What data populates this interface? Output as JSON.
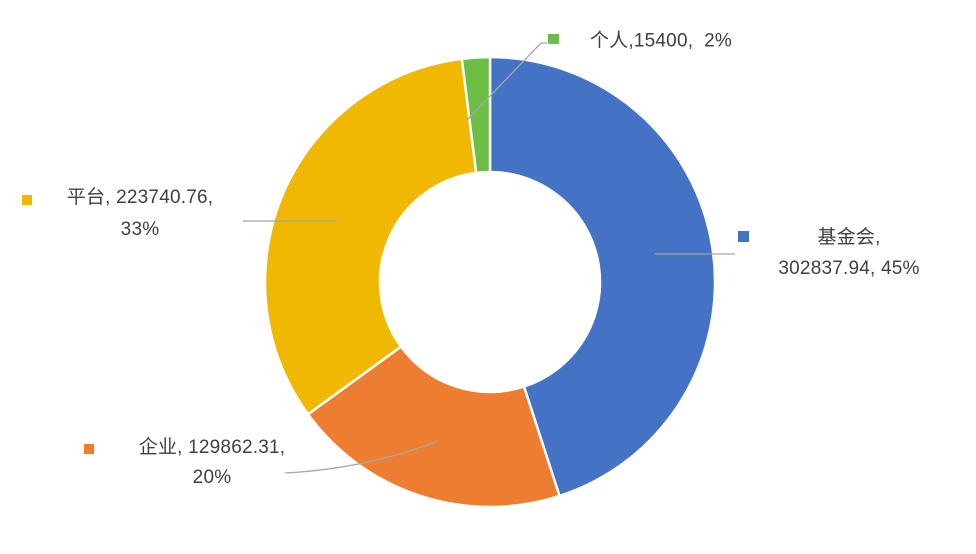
{
  "chart_data": {
    "type": "pie",
    "subtype": "donut",
    "title": "",
    "categories": [
      "基金会",
      "企业",
      "平台",
      "个人"
    ],
    "values": [
      302837.94,
      129862.31,
      223740.76,
      15400
    ],
    "percents": [
      45,
      20,
      33,
      2
    ],
    "colors": [
      "#4472C4",
      "#ED7D31",
      "#F0B800",
      "#6CBE44"
    ],
    "start_angle_deg": 0,
    "direction": "clockwise",
    "donut_hole_ratio": 0.49,
    "legend_position": "none",
    "data_labels": "outside-with-leader-lines"
  },
  "callouts": [
    {
      "category": "基金会",
      "line1": "基金会,",
      "line2": "302837.94, 45%"
    },
    {
      "category": "企业",
      "line1": "企业, 129862.31,",
      "line2": "20%"
    },
    {
      "category": "平台",
      "line1": "平台, 223740.76,",
      "line2": "33%"
    },
    {
      "category": "个人",
      "line1": "个人,15400,  2%",
      "line2": ""
    }
  ],
  "styles": {
    "label_color": "#404040",
    "leader_color": "#A6A6A6",
    "separator_color": "#FFFFFF",
    "background": "#FFFFFF"
  }
}
